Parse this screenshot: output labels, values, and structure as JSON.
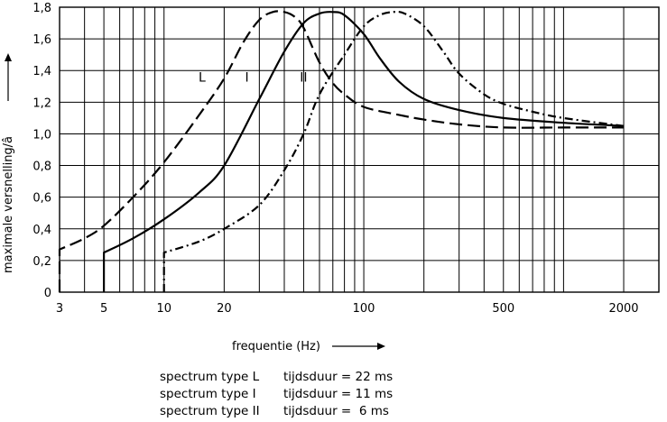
{
  "chart_data": {
    "type": "line",
    "xscale": "log",
    "xlim": [
      3,
      3000
    ],
    "ylim": [
      0,
      1.8
    ],
    "grid": true,
    "xlabel": "frequentie (Hz)",
    "ylabel": "maximale versnelling/â",
    "x_tick_labels": [
      "3",
      "5",
      "10",
      "20",
      "100",
      "500",
      "2000"
    ],
    "y_ticks": [
      "0",
      "0,2",
      "0,4",
      "0,6",
      "0,8",
      "1,0",
      "1,2",
      "1,4",
      "1,6",
      "1,8"
    ],
    "series": [
      {
        "name": "L",
        "style": "long-dash",
        "points": [
          [
            3,
            0
          ],
          [
            3,
            0.27
          ],
          [
            4,
            0.34
          ],
          [
            5,
            0.42
          ],
          [
            7,
            0.6
          ],
          [
            10,
            0.82
          ],
          [
            15,
            1.12
          ],
          [
            20,
            1.35
          ],
          [
            25,
            1.58
          ],
          [
            30,
            1.72
          ],
          [
            35,
            1.77
          ],
          [
            40,
            1.77
          ],
          [
            45,
            1.74
          ],
          [
            50,
            1.67
          ],
          [
            60,
            1.45
          ],
          [
            70,
            1.32
          ],
          [
            80,
            1.25
          ],
          [
            100,
            1.17
          ],
          [
            150,
            1.12
          ],
          [
            200,
            1.09
          ],
          [
            300,
            1.06
          ],
          [
            500,
            1.04
          ],
          [
            1000,
            1.04
          ],
          [
            2000,
            1.04
          ]
        ]
      },
      {
        "name": "I",
        "style": "solid",
        "points": [
          [
            5,
            0
          ],
          [
            5,
            0.25
          ],
          [
            7,
            0.34
          ],
          [
            10,
            0.46
          ],
          [
            15,
            0.63
          ],
          [
            20,
            0.8
          ],
          [
            30,
            1.22
          ],
          [
            40,
            1.52
          ],
          [
            50,
            1.7
          ],
          [
            60,
            1.76
          ],
          [
            70,
            1.77
          ],
          [
            80,
            1.75
          ],
          [
            100,
            1.63
          ],
          [
            120,
            1.48
          ],
          [
            150,
            1.33
          ],
          [
            200,
            1.22
          ],
          [
            300,
            1.15
          ],
          [
            500,
            1.1
          ],
          [
            1000,
            1.07
          ],
          [
            2000,
            1.05
          ]
        ]
      },
      {
        "name": "II",
        "style": "dash-dot",
        "points": [
          [
            10,
            0
          ],
          [
            10,
            0.25
          ],
          [
            15,
            0.32
          ],
          [
            20,
            0.4
          ],
          [
            30,
            0.55
          ],
          [
            40,
            0.77
          ],
          [
            50,
            1.0
          ],
          [
            60,
            1.25
          ],
          [
            80,
            1.5
          ],
          [
            100,
            1.68
          ],
          [
            120,
            1.75
          ],
          [
            140,
            1.77
          ],
          [
            160,
            1.76
          ],
          [
            200,
            1.68
          ],
          [
            250,
            1.52
          ],
          [
            300,
            1.38
          ],
          [
            400,
            1.25
          ],
          [
            500,
            1.19
          ],
          [
            700,
            1.14
          ],
          [
            1000,
            1.1
          ],
          [
            2000,
            1.05
          ]
        ]
      }
    ]
  },
  "legend": [
    {
      "spectrum": "spectrum type L",
      "duration": "tijdsduur = 22 ms"
    },
    {
      "spectrum": "spectrum type I",
      "duration": "tijdsduur = 11 ms"
    },
    {
      "spectrum": "spectrum type II",
      "duration": "tijdsduur =  6 ms"
    }
  ]
}
